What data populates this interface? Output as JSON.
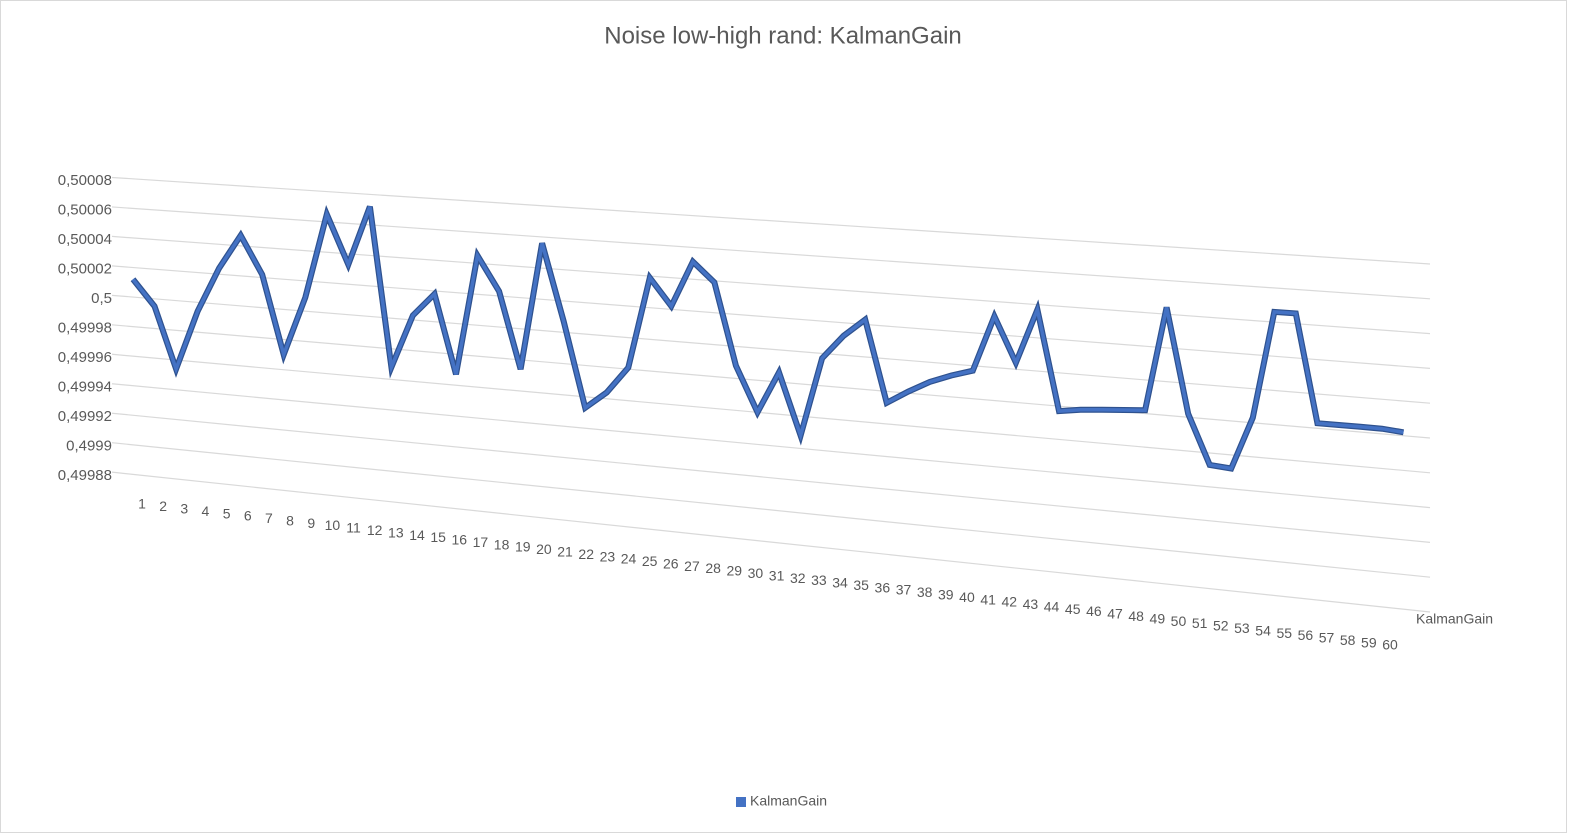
{
  "chart_data": {
    "type": "line3d",
    "title": "Noise low-high rand: KalmanGain",
    "categories": [
      "1",
      "2",
      "3",
      "4",
      "5",
      "6",
      "7",
      "8",
      "9",
      "10",
      "11",
      "12",
      "13",
      "14",
      "15",
      "16",
      "17",
      "18",
      "19",
      "20",
      "21",
      "22",
      "23",
      "24",
      "25",
      "26",
      "27",
      "28",
      "29",
      "30",
      "31",
      "32",
      "33",
      "34",
      "35",
      "36",
      "37",
      "38",
      "39",
      "40",
      "41",
      "42",
      "43",
      "44",
      "45",
      "46",
      "47",
      "48",
      "49",
      "50",
      "51",
      "52",
      "53",
      "54",
      "55",
      "56",
      "57",
      "58",
      "59",
      "60"
    ],
    "series": [
      {
        "name": "KalmanGain",
        "color": "#4472c4",
        "values": [
          0.500012,
          0.499995,
          0.499954,
          0.499994,
          0.500024,
          0.500047,
          0.500022,
          0.49997,
          0.500009,
          0.500065,
          0.500033,
          0.500072,
          0.499968,
          0.500003,
          0.500018,
          0.499967,
          0.500045,
          0.500023,
          0.499974,
          0.500056,
          0.500007,
          0.499953,
          0.499964,
          0.499981,
          0.500039,
          0.500022,
          0.500051,
          0.500039,
          0.499988,
          0.49996,
          0.499986,
          0.499948,
          0.499997,
          0.500012,
          0.500023,
          0.499973,
          0.499981,
          0.499988,
          0.499993,
          0.499997,
          0.500031,
          0.500004,
          0.500037,
          0.499977,
          0.499979,
          0.49998,
          0.499981,
          0.499982,
          0.500044,
          0.499982,
          0.499953,
          0.499952,
          0.499983,
          0.500046,
          0.500046,
          0.499983,
          0.499983,
          0.499983,
          0.499983,
          0.499982
        ]
      }
    ],
    "ylim": [
      0.49988,
      0.50008
    ],
    "yticks": [
      {
        "value": 0.49988,
        "label": "0,49988"
      },
      {
        "value": 0.4999,
        "label": "0,4999"
      },
      {
        "value": 0.49992,
        "label": "0,49992"
      },
      {
        "value": 0.49994,
        "label": "0,49994"
      },
      {
        "value": 0.49996,
        "label": "0,49996"
      },
      {
        "value": 0.49998,
        "label": "0,49998"
      },
      {
        "value": 0.5,
        "label": "0,5"
      },
      {
        "value": 0.50002,
        "label": "0,50002"
      },
      {
        "value": 0.50004,
        "label": "0,50004"
      },
      {
        "value": 0.50006,
        "label": "0,50006"
      },
      {
        "value": 0.50008,
        "label": "0,50008"
      }
    ],
    "grid": true,
    "legend": "bottom"
  }
}
